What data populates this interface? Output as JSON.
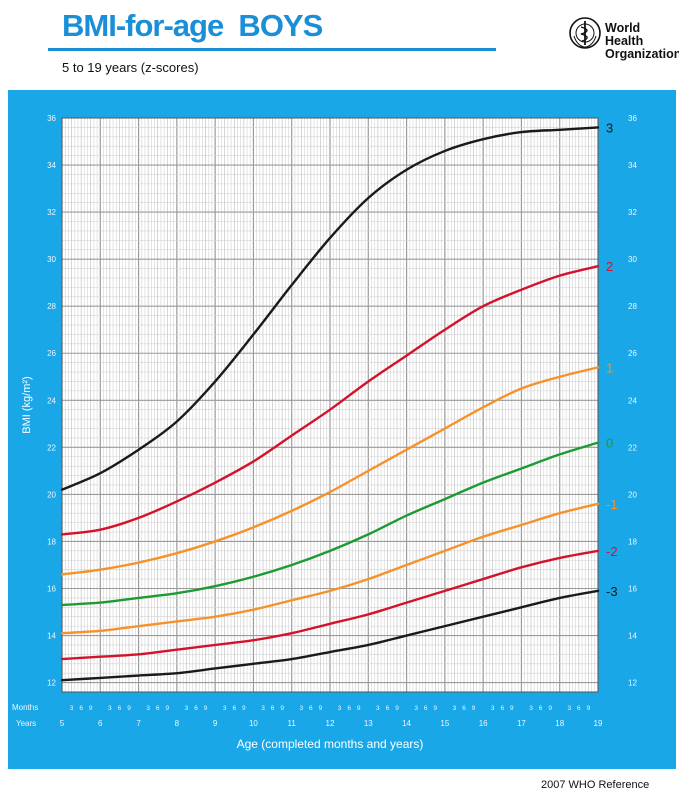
{
  "header": {
    "title": "BMI-for-age  BOYS",
    "subtitle": "5 to 19 years (z-scores)"
  },
  "logo": {
    "line1": "World Health",
    "line2": "Organization",
    "icon": "who-emblem-icon"
  },
  "footer": {
    "text": "2007  WHO Reference"
  },
  "colors": {
    "panel_bg": "#1aa7e8",
    "plot_bg": "#ffffff",
    "grid_major": "#9a9a9a",
    "grid_minor": "#d2d2d2",
    "title_blue": "#1a8fd8"
  },
  "chart_data": {
    "type": "line",
    "title": "BMI-for-age  BOYS",
    "subtitle": "5 to 19 years (z-scores)",
    "xlabel": "Age (completed months and years)",
    "ylabel": "BMI (kg/m²)",
    "x_row_labels": {
      "months": "Months",
      "years": "Years"
    },
    "xlim": [
      5,
      19
    ],
    "ylim": [
      11.6,
      36
    ],
    "x_ticks": [
      "5",
      "6",
      "7",
      "8",
      "9",
      "10",
      "11",
      "12",
      "13",
      "14",
      "15",
      "16",
      "17",
      "18",
      "19"
    ],
    "month_ticks": [
      "3",
      "6",
      "9"
    ],
    "y_ticks": [
      "12",
      "14",
      "16",
      "18",
      "20",
      "22",
      "24",
      "26",
      "28",
      "30",
      "32",
      "34",
      "36"
    ],
    "grid": true,
    "x": [
      5,
      6,
      7,
      8,
      9,
      10,
      11,
      12,
      13,
      14,
      15,
      16,
      17,
      18,
      19
    ],
    "series": [
      {
        "name": "3",
        "color": "#1a1a1a",
        "values": [
          20.2,
          20.9,
          21.9,
          23.1,
          24.8,
          26.8,
          28.9,
          30.9,
          32.6,
          33.8,
          34.6,
          35.1,
          35.4,
          35.5,
          35.6
        ]
      },
      {
        "name": "2",
        "color": "#d3132c",
        "values": [
          18.3,
          18.5,
          19.0,
          19.7,
          20.5,
          21.4,
          22.5,
          23.6,
          24.8,
          25.9,
          27.0,
          28.0,
          28.7,
          29.3,
          29.7
        ]
      },
      {
        "name": "1",
        "color": "#f5922a",
        "values": [
          16.6,
          16.8,
          17.1,
          17.5,
          18.0,
          18.6,
          19.3,
          20.1,
          21.0,
          21.9,
          22.8,
          23.7,
          24.5,
          25.0,
          25.4
        ]
      },
      {
        "name": "0",
        "color": "#1e9a33",
        "values": [
          15.3,
          15.4,
          15.6,
          15.8,
          16.1,
          16.5,
          17.0,
          17.6,
          18.3,
          19.1,
          19.8,
          20.5,
          21.1,
          21.7,
          22.2
        ]
      },
      {
        "name": "-1",
        "color": "#f5922a",
        "values": [
          14.1,
          14.2,
          14.4,
          14.6,
          14.8,
          15.1,
          15.5,
          15.9,
          16.4,
          17.0,
          17.6,
          18.2,
          18.7,
          19.2,
          19.6
        ]
      },
      {
        "name": "-2",
        "color": "#d3132c",
        "values": [
          13.0,
          13.1,
          13.2,
          13.4,
          13.6,
          13.8,
          14.1,
          14.5,
          14.9,
          15.4,
          15.9,
          16.4,
          16.9,
          17.3,
          17.6
        ]
      },
      {
        "name": "-3",
        "color": "#1a1a1a",
        "values": [
          12.1,
          12.2,
          12.3,
          12.4,
          12.6,
          12.8,
          13.0,
          13.3,
          13.6,
          14.0,
          14.4,
          14.8,
          15.2,
          15.6,
          15.9
        ]
      }
    ]
  }
}
